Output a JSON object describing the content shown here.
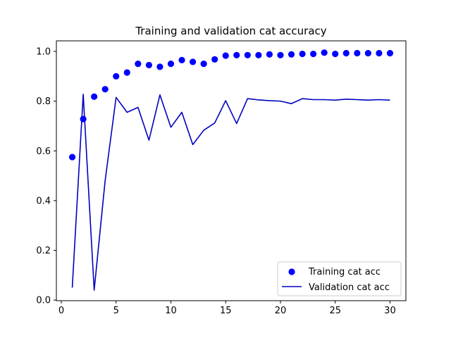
{
  "chart_data": {
    "type": "line",
    "title": "Training and validation cat accuracy",
    "xlabel": "",
    "ylabel": "",
    "xlim": [
      -0.45,
      31.45
    ],
    "ylim": [
      -0.0025,
      1.0425
    ],
    "x_ticks": [
      0,
      5,
      10,
      15,
      20,
      25,
      30
    ],
    "y_ticks": [
      0.0,
      0.2,
      0.4,
      0.6,
      0.8,
      1.0
    ],
    "x_tick_labels": [
      "0",
      "5",
      "10",
      "15",
      "20",
      "25",
      "30"
    ],
    "y_tick_labels": [
      "0.0",
      "0.2",
      "0.4",
      "0.6",
      "0.8",
      "1.0"
    ],
    "grid": false,
    "legend_position": "lower-right",
    "x": [
      1,
      2,
      3,
      4,
      5,
      6,
      7,
      8,
      9,
      10,
      11,
      12,
      13,
      14,
      15,
      16,
      17,
      18,
      19,
      20,
      21,
      22,
      23,
      24,
      25,
      26,
      27,
      28,
      29,
      30
    ],
    "series": [
      {
        "name": "Training cat acc",
        "style": "points",
        "color": "#0000ff",
        "values": [
          0.575,
          0.728,
          0.818,
          0.848,
          0.9,
          0.915,
          0.95,
          0.945,
          0.938,
          0.95,
          0.965,
          0.958,
          0.95,
          0.968,
          0.983,
          0.985,
          0.985,
          0.985,
          0.988,
          0.985,
          0.988,
          0.99,
          0.99,
          0.995,
          0.99,
          0.993,
          0.993,
          0.993,
          0.993,
          0.993
        ]
      },
      {
        "name": "Validation cat acc",
        "style": "line",
        "color": "#0000bf",
        "values": [
          0.05,
          0.828,
          0.04,
          0.48,
          0.815,
          0.755,
          0.775,
          0.643,
          0.825,
          0.695,
          0.755,
          0.625,
          0.683,
          0.712,
          0.802,
          0.71,
          0.81,
          0.805,
          0.802,
          0.8,
          0.79,
          0.81,
          0.806,
          0.806,
          0.804,
          0.808,
          0.806,
          0.804,
          0.806,
          0.804
        ]
      }
    ]
  }
}
